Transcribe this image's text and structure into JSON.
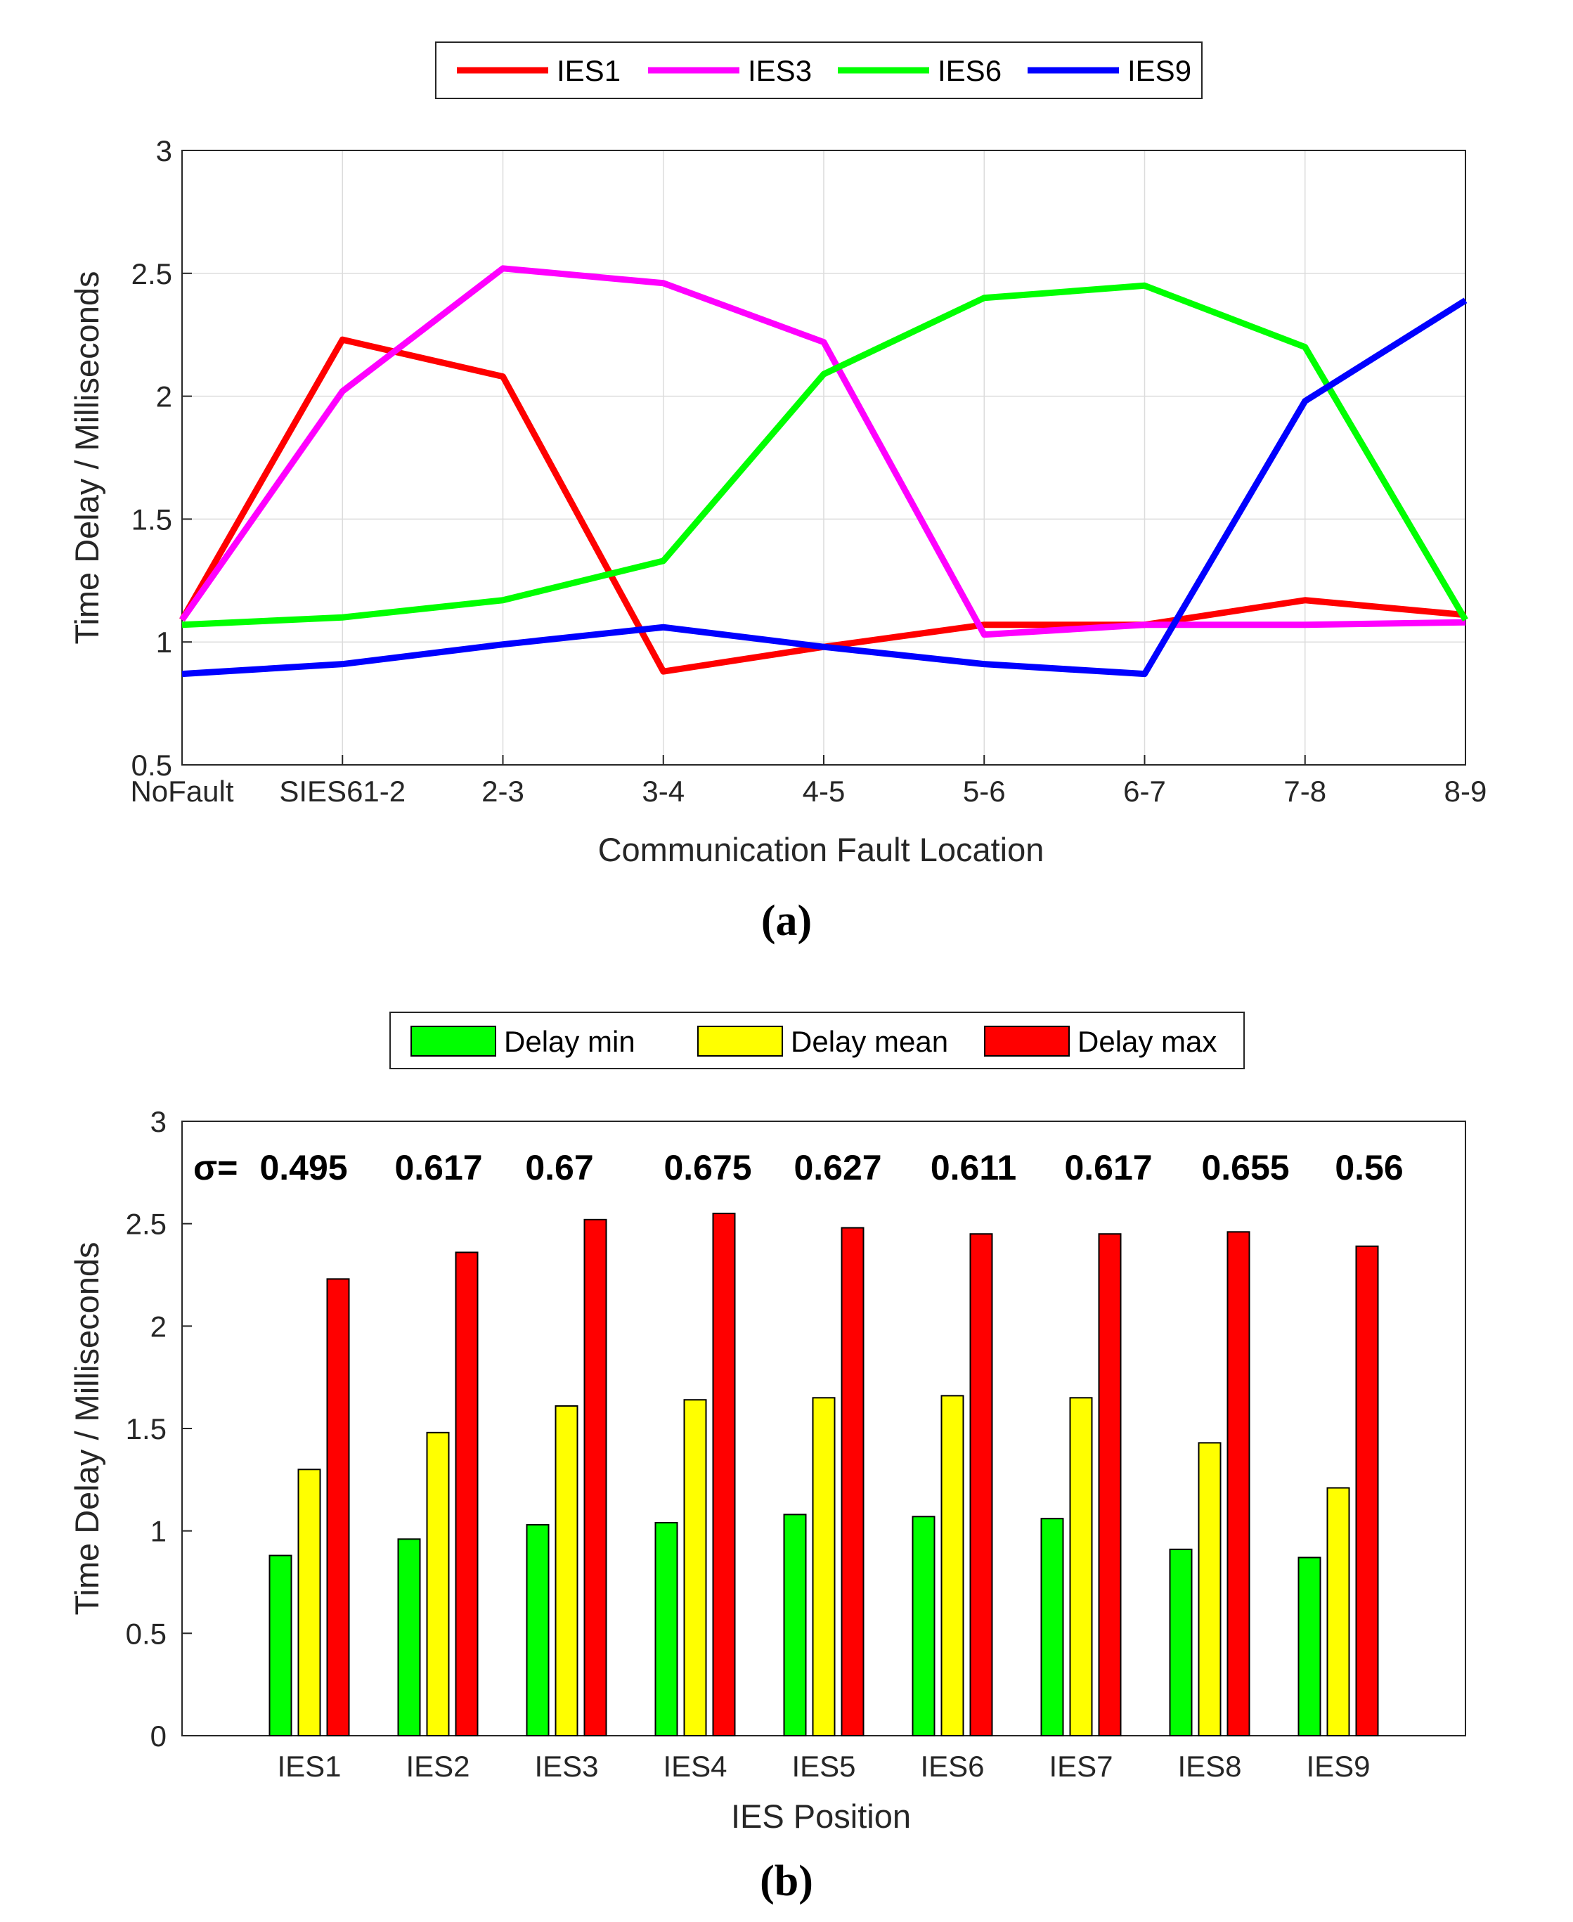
{
  "chart_data": [
    {
      "type": "line",
      "panel_label": "a",
      "xlabel": "Communication Fault Location",
      "ylabel": "Time Delay / Milliseconds",
      "categories": [
        "NoFault",
        "SIES61-2",
        "2-3",
        "3-4",
        "4-5",
        "5-6",
        "6-7",
        "7-8",
        "8-9"
      ],
      "ylim": [
        0.5,
        3
      ],
      "yticks": [
        0.5,
        1,
        1.5,
        2,
        2.5,
        3
      ],
      "ytick_labels": [
        "0.5",
        "1",
        "1.5",
        "2",
        "2.5",
        "3"
      ],
      "grid": true,
      "legend": {
        "placement": "top-center",
        "orientation": "horizontal"
      },
      "series": [
        {
          "name": "IES1",
          "color": "#ff0000",
          "values": [
            1.09,
            2.23,
            2.08,
            0.88,
            0.98,
            1.07,
            1.07,
            1.17,
            1.11
          ]
        },
        {
          "name": "IES3",
          "color": "#ff00ff",
          "values": [
            1.09,
            2.02,
            2.52,
            2.46,
            2.22,
            1.03,
            1.07,
            1.07,
            1.08
          ]
        },
        {
          "name": "IES6",
          "color": "#00ff00",
          "values": [
            1.07,
            1.1,
            1.17,
            1.33,
            2.09,
            2.4,
            2.45,
            2.2,
            1.09
          ]
        },
        {
          "name": "IES9",
          "color": "#0000ff",
          "values": [
            0.87,
            0.91,
            0.99,
            1.06,
            0.98,
            0.91,
            0.87,
            1.98,
            2.39
          ]
        }
      ]
    },
    {
      "type": "bar",
      "panel_label": "b",
      "xlabel": "IES Position",
      "ylabel": "Time Delay / Milliseconds",
      "categories": [
        "IES1",
        "IES2",
        "IES3",
        "IES4",
        "IES5",
        "IES6",
        "IES7",
        "IES8",
        "IES9"
      ],
      "ylim": [
        0,
        3
      ],
      "yticks": [
        0,
        0.5,
        1,
        1.5,
        2,
        2.5,
        3
      ],
      "ytick_labels": [
        "0",
        "0.5",
        "1",
        "1.5",
        "2",
        "2.5",
        "3"
      ],
      "grid": false,
      "legend": {
        "placement": "top-center",
        "orientation": "horizontal"
      },
      "series": [
        {
          "name": "Delay min",
          "color": "#00ff00",
          "values": [
            0.88,
            0.96,
            1.03,
            1.04,
            1.08,
            1.07,
            1.06,
            0.91,
            0.87
          ]
        },
        {
          "name": "Delay mean",
          "color": "#ffff00",
          "values": [
            1.3,
            1.48,
            1.61,
            1.64,
            1.65,
            1.66,
            1.65,
            1.43,
            1.21
          ]
        },
        {
          "name": "Delay max",
          "color": "#ff0000",
          "values": [
            2.23,
            2.36,
            2.52,
            2.55,
            2.48,
            2.45,
            2.45,
            2.46,
            2.39
          ]
        }
      ],
      "annotations": {
        "sigma_prefix": "σ=",
        "sigma_values": [
          "0.495",
          "0.617",
          "0.67",
          "0.675",
          "0.627",
          "0.611",
          "0.617",
          "0.655",
          "0.56"
        ]
      }
    }
  ],
  "captions": {
    "a": "(a)",
    "b": "(b)"
  }
}
